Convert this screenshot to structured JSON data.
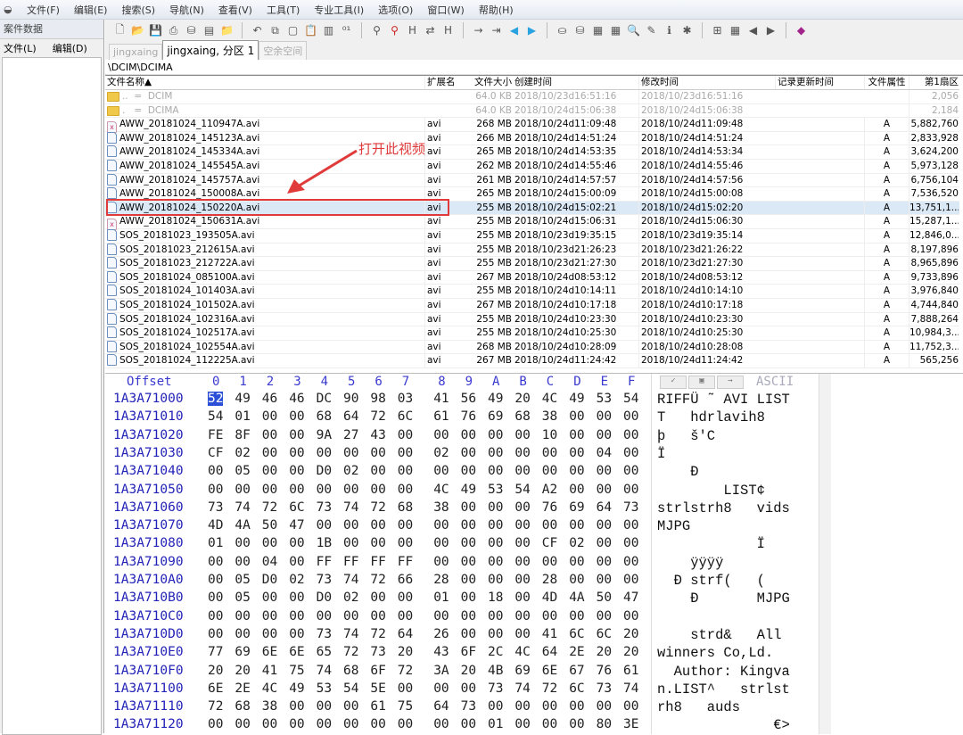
{
  "menu": [
    "文件(F)",
    "编辑(E)",
    "搜索(S)",
    "导航(N)",
    "查看(V)",
    "工具(T)",
    "专业工具(I)",
    "选项(O)",
    "窗口(W)",
    "帮助(H)"
  ],
  "left_pane": {
    "title": "案件数据",
    "menu": [
      "文件(L)",
      "编辑(D)"
    ]
  },
  "toolbar_icons": [
    "new-file",
    "open",
    "save",
    "print",
    "disk",
    "properties",
    "open-folder",
    "|",
    "undo",
    "copy",
    "paste-disabled",
    "paste",
    "copy-block",
    "convert-binary",
    "|",
    "find",
    "find-next",
    "find-hex",
    "replace",
    "replace-hex",
    "|",
    "goto-offset",
    "goto-sector",
    "back",
    "forward",
    "|",
    "disk-tools",
    "disks",
    "ram",
    "calculator",
    "search-view",
    "comments",
    "info",
    "plugin",
    "|",
    "grid",
    "table",
    "prev",
    "next",
    "|",
    "book"
  ],
  "tabs": [
    {
      "label": "jingxaing",
      "active": false
    },
    {
      "label": "jingxaing, 分区 1",
      "active": true
    },
    {
      "label": "空余空间",
      "active": false
    }
  ],
  "path": "\\DCIM\\DCIMA",
  "columns": {
    "name": "文件名称▲",
    "ext": "扩展名",
    "size": "文件大小",
    "ctime": "创建时间",
    "mtime": "修改时间",
    "rtime": "记录更新时间",
    "attr": "文件属性",
    "sect": "第1扇区"
  },
  "files": [
    {
      "icon": "folder",
      "name": "..  =  DCIM",
      "ext": "",
      "size": "64.0 KB",
      "ctime": "2018/10/23d16:51:16",
      "mtime": "2018/10/23d16:51:16",
      "attr": "",
      "sect": "2,056",
      "dim": true
    },
    {
      "icon": "folder",
      "name": ".   =  DCIMA",
      "ext": "",
      "size": "64.0 KB",
      "ctime": "2018/10/24d15:06:38",
      "mtime": "2018/10/24d15:06:38",
      "attr": "",
      "sect": "2,184",
      "dim": true
    },
    {
      "icon": "bad",
      "name": "AWW_20181024_110947A.avi",
      "ext": "avi",
      "size": "268 MB",
      "ctime": "2018/10/24d11:09:48",
      "mtime": "2018/10/24d11:09:48",
      "attr": "A",
      "sect": "5,882,760"
    },
    {
      "icon": "file",
      "name": "AWW_20181024_145123A.avi",
      "ext": "avi",
      "size": "266 MB",
      "ctime": "2018/10/24d14:51:24",
      "mtime": "2018/10/24d14:51:24",
      "attr": "A",
      "sect": "2,833,928"
    },
    {
      "icon": "file",
      "name": "AWW_20181024_145334A.avi",
      "ext": "avi",
      "size": "265 MB",
      "ctime": "2018/10/24d14:53:35",
      "mtime": "2018/10/24d14:53:34",
      "attr": "A",
      "sect": "3,624,200"
    },
    {
      "icon": "file",
      "name": "AWW_20181024_145545A.avi",
      "ext": "avi",
      "size": "262 MB",
      "ctime": "2018/10/24d14:55:46",
      "mtime": "2018/10/24d14:55:46",
      "attr": "A",
      "sect": "5,973,128"
    },
    {
      "icon": "file",
      "name": "AWW_20181024_145757A.avi",
      "ext": "avi",
      "size": "261 MB",
      "ctime": "2018/10/24d14:57:57",
      "mtime": "2018/10/24d14:57:56",
      "attr": "A",
      "sect": "6,756,104"
    },
    {
      "icon": "file",
      "name": "AWW_20181024_150008A.avi",
      "ext": "avi",
      "size": "265 MB",
      "ctime": "2018/10/24d15:00:09",
      "mtime": "2018/10/24d15:00:08",
      "attr": "A",
      "sect": "7,536,520"
    },
    {
      "icon": "file",
      "name": "AWW_20181024_150220A.avi",
      "ext": "avi",
      "size": "255 MB",
      "ctime": "2018/10/24d15:02:21",
      "mtime": "2018/10/24d15:02:20",
      "attr": "A",
      "sect": "13,751,1...",
      "selected": true
    },
    {
      "icon": "bad",
      "name": "AWW_20181024_150631A.avi",
      "ext": "avi",
      "size": "255 MB",
      "ctime": "2018/10/24d15:06:31",
      "mtime": "2018/10/24d15:06:30",
      "attr": "A",
      "sect": "15,287,1..."
    },
    {
      "icon": "file",
      "name": "SOS_20181023_193505A.avi",
      "ext": "avi",
      "size": "255 MB",
      "ctime": "2018/10/23d19:35:15",
      "mtime": "2018/10/23d19:35:14",
      "attr": "A",
      "sect": "12,846,0..."
    },
    {
      "icon": "file",
      "name": "SOS_20181023_212615A.avi",
      "ext": "avi",
      "size": "255 MB",
      "ctime": "2018/10/23d21:26:23",
      "mtime": "2018/10/23d21:26:22",
      "attr": "A",
      "sect": "8,197,896"
    },
    {
      "icon": "file",
      "name": "SOS_20181023_212722A.avi",
      "ext": "avi",
      "size": "255 MB",
      "ctime": "2018/10/23d21:27:30",
      "mtime": "2018/10/23d21:27:30",
      "attr": "A",
      "sect": "8,965,896"
    },
    {
      "icon": "file",
      "name": "SOS_20181024_085100A.avi",
      "ext": "avi",
      "size": "267 MB",
      "ctime": "2018/10/24d08:53:12",
      "mtime": "2018/10/24d08:53:12",
      "attr": "A",
      "sect": "9,733,896"
    },
    {
      "icon": "file",
      "name": "SOS_20181024_101403A.avi",
      "ext": "avi",
      "size": "255 MB",
      "ctime": "2018/10/24d10:14:11",
      "mtime": "2018/10/24d10:14:10",
      "attr": "A",
      "sect": "3,976,840"
    },
    {
      "icon": "file",
      "name": "SOS_20181024_101502A.avi",
      "ext": "avi",
      "size": "267 MB",
      "ctime": "2018/10/24d10:17:18",
      "mtime": "2018/10/24d10:17:18",
      "attr": "A",
      "sect": "4,744,840"
    },
    {
      "icon": "file",
      "name": "SOS_20181024_102316A.avi",
      "ext": "avi",
      "size": "255 MB",
      "ctime": "2018/10/24d10:23:30",
      "mtime": "2018/10/24d10:23:30",
      "attr": "A",
      "sect": "7,888,264"
    },
    {
      "icon": "file",
      "name": "SOS_20181024_102517A.avi",
      "ext": "avi",
      "size": "255 MB",
      "ctime": "2018/10/24d10:25:30",
      "mtime": "2018/10/24d10:25:30",
      "attr": "A",
      "sect": "10,984,3..."
    },
    {
      "icon": "file",
      "name": "SOS_20181024_102554A.avi",
      "ext": "avi",
      "size": "268 MB",
      "ctime": "2018/10/24d10:28:09",
      "mtime": "2018/10/24d10:28:08",
      "attr": "A",
      "sect": "11,752,3..."
    },
    {
      "icon": "file",
      "name": "SOS_20181024_112225A.avi",
      "ext": "avi",
      "size": "267 MB",
      "ctime": "2018/10/24d11:24:42",
      "mtime": "2018/10/24d11:24:42",
      "attr": "A",
      "sect": "565,256"
    }
  ],
  "annotation": "打开此视频",
  "annotation_color": "#e03a3a",
  "hex": {
    "offset_label": "Offset",
    "col_labels": [
      "0",
      "1",
      "2",
      "3",
      "4",
      "5",
      "6",
      "7",
      "8",
      "9",
      "A",
      "B",
      "C",
      "D",
      "E",
      "F"
    ],
    "ascii_label": "ASCII",
    "rows": [
      {
        "off": "1A3A71000",
        "bytes": "52 49 46 46 DC 90 98 03 41 56 49 20 4C 49 53 54",
        "ascii": "RIFFÜ ˜ AVI LIST"
      },
      {
        "off": "1A3A71010",
        "bytes": "54 01 00 00 68 64 72 6C 61 76 69 68 38 00 00 00",
        "ascii": "T   hdrlavih8"
      },
      {
        "off": "1A3A71020",
        "bytes": "FE 8F 00 00 9A 27 43 00 00 00 00 00 10 00 00 00",
        "ascii": "þ   š'C"
      },
      {
        "off": "1A3A71030",
        "bytes": "CF 02 00 00 00 00 00 00 02 00 00 00 00 00 04 00",
        "ascii": "Ï"
      },
      {
        "off": "1A3A71040",
        "bytes": "00 05 00 00 D0 02 00 00 00 00 00 00 00 00 00 00",
        "ascii": "    Ð"
      },
      {
        "off": "1A3A71050",
        "bytes": "00 00 00 00 00 00 00 00 4C 49 53 54 A2 00 00 00",
        "ascii": "        LIST¢"
      },
      {
        "off": "1A3A71060",
        "bytes": "73 74 72 6C 73 74 72 68 38 00 00 00 76 69 64 73",
        "ascii": "strlstrh8   vids"
      },
      {
        "off": "1A3A71070",
        "bytes": "4D 4A 50 47 00 00 00 00 00 00 00 00 00 00 00 00",
        "ascii": "MJPG"
      },
      {
        "off": "1A3A71080",
        "bytes": "01 00 00 00 1B 00 00 00 00 00 00 00 CF 02 00 00",
        "ascii": "            Ï"
      },
      {
        "off": "1A3A71090",
        "bytes": "00 00 04 00 FF FF FF FF 00 00 00 00 00 00 00 00",
        "ascii": "    ÿÿÿÿ"
      },
      {
        "off": "1A3A710A0",
        "bytes": "00 05 D0 02 73 74 72 66 28 00 00 00 28 00 00 00",
        "ascii": "  Ð strf(   ("
      },
      {
        "off": "1A3A710B0",
        "bytes": "00 05 00 00 D0 02 00 00 01 00 18 00 4D 4A 50 47",
        "ascii": "    Ð       MJPG"
      },
      {
        "off": "1A3A710C0",
        "bytes": "00 00 00 00 00 00 00 00 00 00 00 00 00 00 00 00",
        "ascii": ""
      },
      {
        "off": "1A3A710D0",
        "bytes": "00 00 00 00 73 74 72 64 26 00 00 00 41 6C 6C 20",
        "ascii": "    strd&   All"
      },
      {
        "off": "1A3A710E0",
        "bytes": "77 69 6E 6E 65 72 73 20 43 6F 2C 4C 64 2E 20 20",
        "ascii": "winners Co,Ld."
      },
      {
        "off": "1A3A710F0",
        "bytes": "20 20 41 75 74 68 6F 72 3A 20 4B 69 6E 67 76 61",
        "ascii": "  Author: Kingva"
      },
      {
        "off": "1A3A71100",
        "bytes": "6E 2E 4C 49 53 54 5E 00 00 00 73 74 72 6C 73 74",
        "ascii": "n.LIST^   strlst"
      },
      {
        "off": "1A3A71110",
        "bytes": "72 68 38 00 00 00 61 75 64 73 00 00 00 00 00 00",
        "ascii": "rh8   auds"
      },
      {
        "off": "1A3A71120",
        "bytes": "00 00 00 00 00 00 00 00 00 00 01 00 00 00 80 3E",
        "ascii": "              €>"
      }
    ]
  }
}
